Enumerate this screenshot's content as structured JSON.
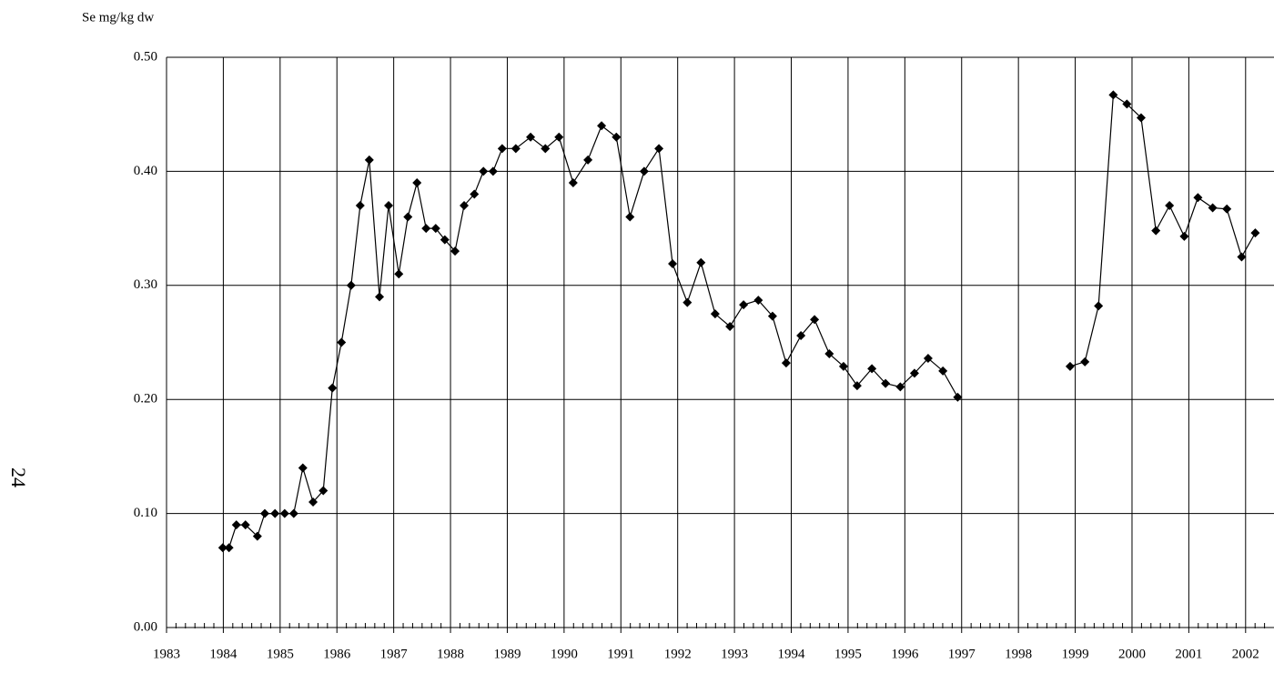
{
  "page_number": "24",
  "chart_data": {
    "type": "line",
    "y_label": "Se mg/kg dw",
    "color": "#000000",
    "grid": true,
    "xlim": [
      1983,
      2002.5
    ],
    "xticks": [
      1983,
      1984,
      1985,
      1986,
      1987,
      1988,
      1989,
      1990,
      1991,
      1992,
      1993,
      1994,
      1995,
      1996,
      1997,
      1998,
      1999,
      2000,
      2001,
      2002
    ],
    "ylim": [
      0,
      0.5
    ],
    "yticks": [
      {
        "value": 0,
        "label": "0.00"
      },
      {
        "value": 0.1,
        "label": "0.10"
      },
      {
        "value": 0.2,
        "label": "0.20"
      },
      {
        "value": 0.3,
        "label": "0.30"
      },
      {
        "value": 0.4,
        "label": "0.40"
      },
      {
        "value": 0.5,
        "label": "0.50"
      }
    ],
    "x": [
      1983.99,
      1984.1,
      1984.23,
      1984.39,
      1984.6,
      1984.73,
      1984.91,
      1985.08,
      1985.24,
      1985.4,
      1985.58,
      1985.76,
      1985.92,
      1986.08,
      1986.25,
      1986.41,
      1986.57,
      1986.75,
      1986.91,
      1987.09,
      1987.25,
      1987.41,
      1987.57,
      1987.74,
      1987.9,
      1988.08,
      1988.24,
      1988.42,
      1988.58,
      1988.75,
      1988.91,
      1989.15,
      1989.41,
      1989.67,
      1989.91,
      1990.16,
      1990.42,
      1990.66,
      1990.92,
      1991.16,
      1991.41,
      1991.67,
      1991.91,
      1992.17,
      1992.41,
      1992.66,
      1992.92,
      1993.16,
      1993.42,
      1993.67,
      1993.91,
      1994.17,
      1994.41,
      1994.67,
      1994.92,
      1995.16,
      1995.42,
      1995.66,
      1995.92,
      1996.17,
      1996.41,
      1996.67,
      1996.93,
      null,
      1998.91,
      1999.17,
      1999.41,
      1999.67,
      1999.91,
      2000.16,
      2000.42,
      2000.66,
      2000.92,
      2001.16,
      2001.42,
      2001.67,
      2001.93,
      2002.17
    ],
    "values": [
      0.07,
      0.07,
      0.09,
      0.09,
      0.08,
      0.1,
      0.1,
      0.1,
      0.1,
      0.14,
      0.11,
      0.12,
      0.21,
      0.25,
      0.3,
      0.37,
      0.41,
      0.29,
      0.37,
      0.31,
      0.36,
      0.39,
      0.35,
      0.35,
      0.34,
      0.33,
      0.37,
      0.38,
      0.4,
      0.4,
      0.42,
      0.42,
      0.43,
      0.42,
      0.43,
      0.39,
      0.41,
      0.44,
      0.43,
      0.36,
      0.4,
      0.42,
      0.319,
      0.285,
      0.32,
      0.275,
      0.264,
      0.283,
      0.287,
      0.273,
      0.232,
      0.256,
      0.27,
      0.24,
      0.229,
      0.212,
      0.227,
      0.214,
      0.211,
      0.223,
      0.236,
      0.225,
      0.202,
      null,
      0.229,
      0.233,
      0.282,
      0.467,
      0.459,
      0.447,
      0.348,
      0.37,
      0.343,
      0.377,
      0.368,
      0.367,
      0.325,
      0.346
    ]
  }
}
